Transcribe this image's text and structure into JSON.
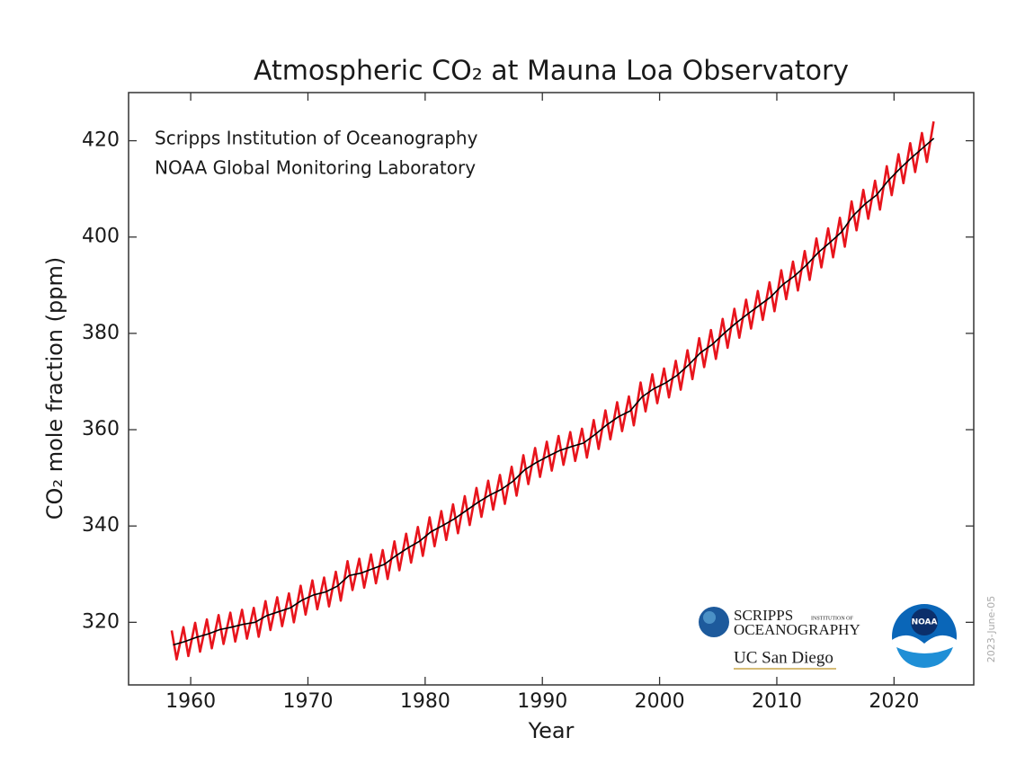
{
  "chart_data": {
    "type": "line",
    "title": "Atmospheric CO₂ at Mauna Loa Observatory",
    "xlabel": "Year",
    "ylabel": "CO₂ mole fraction (ppm)",
    "annotations": [
      "Scripps Institution of Oceanography",
      "NOAA Global Monitoring Laboratory"
    ],
    "logo_texts": {
      "scripps": "SCRIPPS",
      "institution": "INSTITUTION OF",
      "oceanography": "OCEANOGRAPHY",
      "ucsd": "UC San Diego",
      "noaa": "NOAA"
    },
    "date_stamp": "2023-June-05",
    "xlim": [
      1954.7,
      2026.8
    ],
    "ylim": [
      307,
      430
    ],
    "xticks": [
      1960,
      1970,
      1980,
      1990,
      2000,
      2010,
      2020
    ],
    "yticks": [
      320,
      340,
      360,
      380,
      400,
      420
    ],
    "series": [
      {
        "color": "#e8141c",
        "x": [
          1958.38,
          1958.8,
          1959.38,
          1959.8,
          1960.38,
          1960.8,
          1961.38,
          1961.8,
          1962.38,
          1962.8,
          1963.38,
          1963.8,
          1964.38,
          1964.8,
          1965.38,
          1965.8,
          1966.38,
          1966.8,
          1967.38,
          1967.8,
          1968.38,
          1968.8,
          1969.38,
          1969.8,
          1970.38,
          1970.8,
          1971.38,
          1971.8,
          1972.38,
          1972.8,
          1973.38,
          1973.8,
          1974.38,
          1974.8,
          1975.38,
          1975.8,
          1976.38,
          1976.8,
          1977.38,
          1977.8,
          1978.38,
          1978.8,
          1979.38,
          1979.8,
          1980.38,
          1980.8,
          1981.38,
          1981.8,
          1982.38,
          1982.8,
          1983.38,
          1983.8,
          1984.38,
          1984.8,
          1985.38,
          1985.8,
          1986.38,
          1986.8,
          1987.38,
          1987.8,
          1988.38,
          1988.8,
          1989.38,
          1989.8,
          1990.38,
          1990.8,
          1991.38,
          1991.8,
          1992.38,
          1992.8,
          1993.38,
          1993.8,
          1994.38,
          1994.8,
          1995.38,
          1995.8,
          1996.38,
          1996.8,
          1997.38,
          1997.8,
          1998.38,
          1998.8,
          1999.38,
          1999.8,
          2000.38,
          2000.8,
          2001.38,
          2001.8,
          2002.38,
          2002.8,
          2003.38,
          2003.8,
          2004.38,
          2004.8,
          2005.38,
          2005.8,
          2006.38,
          2006.8,
          2007.38,
          2007.8,
          2008.38,
          2008.8,
          2009.38,
          2009.8,
          2010.38,
          2010.8,
          2011.38,
          2011.8,
          2012.38,
          2012.8,
          2013.38,
          2013.8,
          2014.38,
          2014.8,
          2015.38,
          2015.8,
          2016.38,
          2016.8,
          2017.38,
          2017.8,
          2018.38,
          2018.8,
          2019.38,
          2019.8,
          2020.38,
          2020.8,
          2021.38,
          2021.8,
          2022.38,
          2022.8,
          2023.38
        ],
        "values": [
          318.3,
          312.3,
          319.0,
          313.0,
          319.9,
          313.9,
          320.6,
          314.6,
          321.5,
          315.5,
          322.0,
          316.0,
          322.6,
          316.6,
          323.0,
          317.0,
          324.4,
          318.4,
          325.2,
          319.2,
          326.0,
          320.0,
          327.6,
          321.6,
          328.7,
          322.7,
          329.3,
          323.3,
          330.5,
          324.5,
          332.7,
          326.7,
          333.2,
          327.2,
          334.1,
          328.1,
          335.0,
          329.0,
          336.8,
          330.8,
          338.4,
          332.4,
          339.8,
          333.8,
          341.8,
          335.8,
          343.1,
          337.1,
          344.5,
          338.5,
          346.2,
          340.2,
          347.9,
          341.9,
          349.4,
          343.4,
          350.6,
          344.6,
          352.3,
          346.3,
          354.7,
          348.7,
          356.2,
          350.2,
          357.5,
          351.5,
          358.7,
          352.7,
          359.5,
          353.5,
          360.2,
          354.2,
          362.0,
          356.0,
          364.0,
          358.0,
          365.7,
          359.7,
          366.9,
          360.9,
          369.8,
          363.8,
          371.5,
          365.5,
          372.7,
          366.7,
          374.3,
          368.3,
          376.5,
          370.5,
          379.0,
          373.0,
          380.7,
          374.7,
          383.0,
          377.0,
          385.1,
          379.1,
          387.0,
          381.0,
          388.8,
          382.8,
          390.6,
          384.6,
          393.1,
          387.1,
          394.9,
          388.9,
          397.1,
          391.1,
          399.7,
          393.7,
          401.8,
          395.8,
          404.0,
          398.0,
          407.4,
          401.4,
          409.8,
          403.8,
          411.7,
          405.7,
          414.7,
          408.7,
          417.2,
          411.2,
          419.5,
          413.5,
          421.6,
          415.6,
          424.0
        ]
      },
      {
        "color": "#000000",
        "x": [
          1958.5,
          1959.5,
          1960.5,
          1961.5,
          1962.5,
          1963.5,
          1964.5,
          1965.5,
          1966.5,
          1967.5,
          1968.5,
          1969.5,
          1970.5,
          1971.5,
          1972.5,
          1973.5,
          1974.5,
          1975.5,
          1976.5,
          1977.5,
          1978.5,
          1979.5,
          1980.5,
          1981.5,
          1982.5,
          1983.5,
          1984.5,
          1985.5,
          1986.5,
          1987.5,
          1988.5,
          1989.5,
          1990.5,
          1991.5,
          1992.5,
          1993.5,
          1994.5,
          1995.5,
          1996.5,
          1997.5,
          1998.5,
          1999.5,
          2000.5,
          2001.5,
          2002.5,
          2003.5,
          2004.5,
          2005.5,
          2006.5,
          2007.5,
          2008.5,
          2009.5,
          2010.5,
          2011.5,
          2012.5,
          2013.5,
          2014.5,
          2015.5,
          2016.5,
          2017.5,
          2018.5,
          2019.5,
          2020.5,
          2021.5,
          2022.5,
          2023.4
        ],
        "values": [
          315.3,
          316.0,
          316.9,
          317.6,
          318.5,
          319.0,
          319.6,
          320.0,
          321.4,
          322.2,
          323.0,
          324.6,
          325.7,
          326.3,
          327.5,
          329.7,
          330.2,
          331.1,
          332.0,
          333.8,
          335.4,
          336.8,
          338.8,
          340.1,
          341.5,
          343.2,
          344.9,
          346.4,
          347.6,
          349.3,
          351.7,
          353.2,
          354.5,
          355.7,
          356.5,
          357.2,
          359.0,
          361.0,
          362.7,
          363.9,
          366.8,
          368.5,
          369.7,
          371.3,
          373.5,
          376.0,
          377.7,
          380.0,
          382.1,
          384.0,
          385.8,
          387.6,
          390.1,
          391.9,
          394.1,
          396.7,
          398.8,
          401.0,
          404.4,
          406.8,
          408.7,
          411.7,
          414.2,
          416.5,
          418.6,
          420.5
        ]
      }
    ]
  }
}
